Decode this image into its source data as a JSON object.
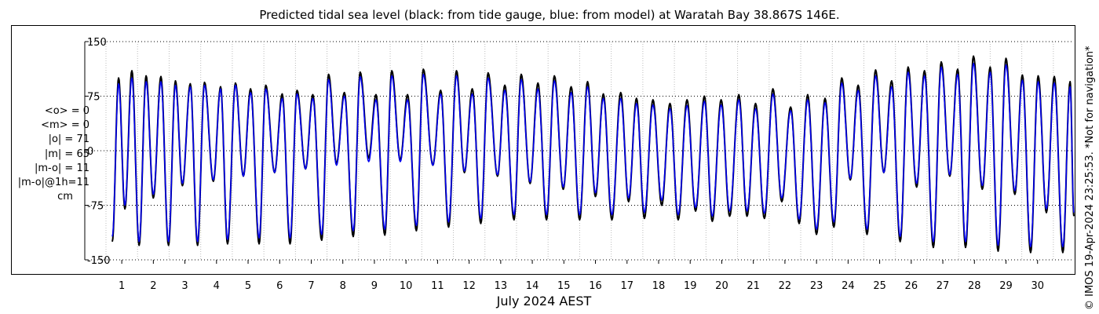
{
  "chart_data": {
    "type": "line",
    "title": "Predicted tidal sea level (black: from tide gauge, blue: from model) at Waratah Bay 38.867S 146E.",
    "xlabel": "July 2024 AEST",
    "ylabel": "",
    "x_tick_labels": [
      "1",
      "2",
      "3",
      "4",
      "5",
      "6",
      "7",
      "8",
      "9",
      "10",
      "11",
      "12",
      "13",
      "14",
      "15",
      "16",
      "17",
      "18",
      "19",
      "20",
      "21",
      "22",
      "23",
      "24",
      "25",
      "26",
      "27",
      "28",
      "29",
      "30"
    ],
    "y_ticks": [
      150,
      75,
      0,
      -75,
      -150
    ],
    "y_tick_labels": [
      "150",
      "75",
      "0",
      "-75",
      "-150"
    ],
    "ylim": [
      -150,
      150
    ],
    "xlim": [
      0,
      30.65
    ],
    "grid": true,
    "stats": [
      "<o> = 0",
      "<m> = 0",
      "|o| = 71",
      "|m| = 65",
      "|m-o| = 11",
      "|m-o|@1h=11",
      "cm"
    ],
    "series": [
      {
        "name": "tide gauge",
        "color": "#000000",
        "x": [
          0.2,
          0.4,
          0.6,
          0.82,
          1.05,
          1.27,
          1.5,
          1.74,
          1.98,
          2.2,
          2.42,
          2.67,
          2.9,
          3.12,
          3.4,
          3.63,
          3.85,
          4.1,
          4.35,
          4.58,
          4.85,
          5.06,
          5.34,
          5.58,
          5.83,
          6.05,
          6.32,
          6.55,
          6.83,
          7.05,
          7.3,
          7.55,
          7.83,
          8.05,
          8.32,
          8.55,
          8.83,
          9.05,
          9.32,
          9.55,
          9.83,
          10.05,
          10.35,
          10.6,
          10.85,
          11.1,
          11.35,
          11.6,
          11.87,
          12.1,
          12.4,
          12.63,
          12.92,
          13.15,
          13.43,
          13.68,
          13.95,
          14.2,
          14.48,
          14.73,
          15.0,
          15.25,
          15.5,
          15.75,
          16.02,
          16.3,
          16.55,
          16.8,
          17.05,
          17.32,
          17.6,
          17.86,
          18.12,
          18.4,
          18.67,
          18.95,
          19.2,
          19.48,
          19.75,
          20.04,
          20.3,
          20.57,
          20.85,
          21.12,
          21.4,
          21.68,
          21.95,
          22.22,
          22.5,
          22.77,
          23.05,
          23.3,
          23.57,
          23.82,
          24.1,
          24.37,
          24.63,
          24.88,
          25.15,
          25.4,
          25.67,
          25.92,
          26.2,
          26.45,
          26.72,
          26.97,
          27.22,
          27.47,
          27.75,
          28.0,
          28.25,
          28.5,
          28.78,
          29.02,
          29.28,
          29.52,
          29.78,
          30.03,
          30.3,
          30.53,
          30.65
        ],
        "values": [
          -125,
          100,
          -80,
          110,
          -130,
          103,
          -65,
          102,
          -130,
          96,
          -48,
          92,
          -130,
          94,
          -42,
          88,
          -128,
          93,
          -35,
          85,
          -128,
          90,
          -30,
          78,
          -128,
          83,
          -25,
          77,
          -123,
          105,
          -18,
          80,
          -118,
          108,
          -10,
          77,
          -116,
          110,
          -13,
          77,
          -110,
          112,
          -20,
          83,
          -105,
          110,
          -30,
          85,
          -100,
          107,
          -35,
          90,
          -95,
          105,
          -45,
          93,
          -95,
          103,
          -53,
          88,
          -95,
          95,
          -63,
          78,
          -95,
          80,
          -70,
          72,
          -93,
          70,
          -75,
          65,
          -95,
          70,
          -83,
          75,
          -97,
          70,
          -90,
          77,
          -90,
          65,
          -93,
          85,
          -70,
          60,
          -100,
          77,
          -115,
          72,
          -105,
          100,
          -40,
          90,
          -115,
          111,
          -30,
          96,
          -125,
          115,
          -50,
          110,
          -133,
          122,
          -35,
          112,
          -133,
          130,
          -53,
          115,
          -138,
          127,
          -60,
          104,
          -140,
          103,
          -85,
          102,
          -140,
          95,
          -90
        ]
      },
      {
        "name": "model",
        "color": "#0000ee",
        "x": [
          0.2,
          0.4,
          0.6,
          0.82,
          1.05,
          1.27,
          1.5,
          1.74,
          1.98,
          2.2,
          2.42,
          2.67,
          2.9,
          3.12,
          3.4,
          3.63,
          3.85,
          4.1,
          4.35,
          4.58,
          4.85,
          5.06,
          5.34,
          5.58,
          5.83,
          6.05,
          6.32,
          6.55,
          6.83,
          7.05,
          7.3,
          7.55,
          7.83,
          8.05,
          8.32,
          8.55,
          8.83,
          9.05,
          9.32,
          9.55,
          9.83,
          10.05,
          10.35,
          10.6,
          10.85,
          11.1,
          11.35,
          11.6,
          11.87,
          12.1,
          12.4,
          12.63,
          12.92,
          13.15,
          13.43,
          13.68,
          13.95,
          14.2,
          14.48,
          14.73,
          15.0,
          15.25,
          15.5,
          15.75,
          16.02,
          16.3,
          16.55,
          16.8,
          17.05,
          17.32,
          17.6,
          17.86,
          18.12,
          18.4,
          18.67,
          18.95,
          19.2,
          19.48,
          19.75,
          20.04,
          20.3,
          20.57,
          20.85,
          21.12,
          21.4,
          21.68,
          21.95,
          22.22,
          22.5,
          22.77,
          23.05,
          23.3,
          23.57,
          23.82,
          24.1,
          24.37,
          24.63,
          24.88,
          25.15,
          25.4,
          25.67,
          25.92,
          26.2,
          26.45,
          26.72,
          26.97,
          27.22,
          27.47,
          27.75,
          28.0,
          28.25,
          28.5,
          28.78,
          29.02,
          29.28,
          29.52,
          29.78,
          30.03,
          30.3,
          30.53,
          30.65
        ],
        "values": [
          -118,
          92,
          -75,
          100,
          -125,
          95,
          -60,
          95,
          -125,
          90,
          -45,
          88,
          -125,
          90,
          -40,
          85,
          -122,
          90,
          -35,
          80,
          -120,
          85,
          -30,
          72,
          -120,
          78,
          -25,
          72,
          -115,
          98,
          -20,
          75,
          -110,
          102,
          -15,
          70,
          -108,
          103,
          -15,
          70,
          -103,
          105,
          -20,
          78,
          -98,
          103,
          -28,
          78,
          -93,
          100,
          -33,
          83,
          -88,
          98,
          -43,
          85,
          -88,
          96,
          -50,
          80,
          -88,
          88,
          -58,
          72,
          -88,
          72,
          -65,
          65,
          -85,
          63,
          -68,
          58,
          -88,
          62,
          -78,
          68,
          -90,
          63,
          -83,
          70,
          -83,
          58,
          -86,
          78,
          -65,
          55,
          -94,
          70,
          -108,
          66,
          -98,
          93,
          -38,
          83,
          -108,
          103,
          -30,
          88,
          -118,
          108,
          -45,
          103,
          -125,
          115,
          -33,
          105,
          -125,
          120,
          -48,
          108,
          -130,
          118,
          -55,
          97,
          -132,
          95,
          -80,
          93,
          -132,
          88,
          -85
        ]
      }
    ]
  },
  "copyright": "© IMOS 19-Apr-2024 23:25:53. *Not for navigation*"
}
